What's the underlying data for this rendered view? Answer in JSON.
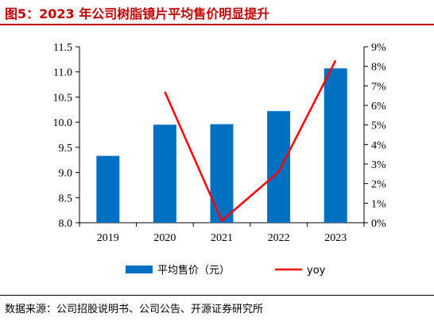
{
  "title": "图5：2023 年公司树脂镜片平均售价明显提升",
  "source": "数据来源：公司招股说明书、公司公告、开源证券研究所",
  "colors": {
    "bar": "#0070c0",
    "line": "#ff0000",
    "title": "#c00000",
    "axis": "#000000"
  },
  "chart_data": {
    "type": "bar+line",
    "categories": [
      "2019",
      "2020",
      "2021",
      "2022",
      "2023"
    ],
    "series": [
      {
        "name": "平均售价（元）",
        "type": "bar",
        "axis": "left",
        "values": [
          9.33,
          9.95,
          9.96,
          10.22,
          11.07
        ]
      },
      {
        "name": "yoy",
        "type": "line",
        "axis": "right",
        "values": [
          null,
          6.7,
          0.1,
          2.6,
          8.3
        ]
      }
    ],
    "y_left": {
      "min": 8.0,
      "max": 11.5,
      "ticks": [
        "8.0",
        "8.5",
        "9.0",
        "9.5",
        "10.0",
        "10.5",
        "11.0",
        "11.5"
      ]
    },
    "y_right": {
      "min": 0,
      "max": 9,
      "ticks": [
        "0%",
        "1%",
        "2%",
        "3%",
        "4%",
        "5%",
        "6%",
        "7%",
        "8%",
        "9%"
      ]
    },
    "legend_position": "bottom",
    "grid": false
  }
}
